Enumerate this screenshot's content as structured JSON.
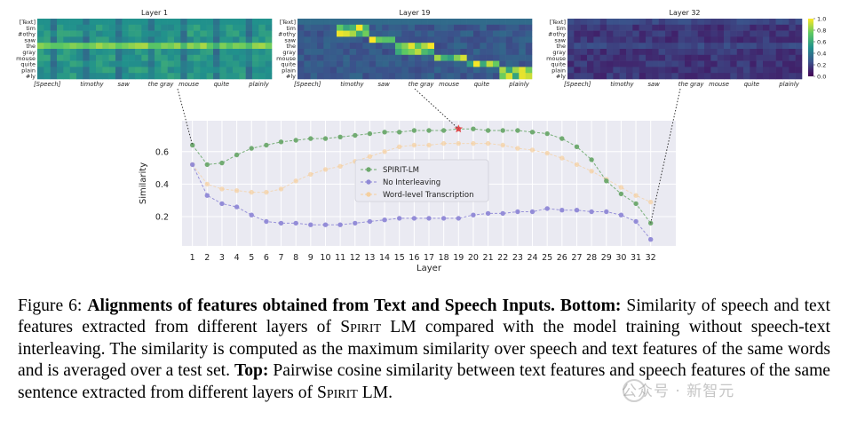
{
  "chart_data": [
    {
      "type": "heatmap",
      "title": "Layer 1",
      "row_labels": [
        "[Text]",
        "tim",
        "#othy",
        "saw",
        "the",
        "gray",
        "mouse",
        "quite",
        "plain",
        "#ly"
      ],
      "col_labels": [
        "[Speech]",
        "timothy",
        "saw",
        "the gray",
        "mouse",
        "quite",
        "plainly"
      ]
    },
    {
      "type": "heatmap",
      "title": "Layer 19",
      "row_labels": [
        "[Text]",
        "tim",
        "#othy",
        "saw",
        "the",
        "gray",
        "mouse",
        "quite",
        "plain",
        "#ly"
      ],
      "col_labels": [
        "[Speech]",
        "timothy",
        "saw",
        "the gray",
        "mouse",
        "quite",
        "plainly"
      ]
    },
    {
      "type": "heatmap",
      "title": "Layer 32",
      "row_labels": [
        "[Text]",
        "tim",
        "#othy",
        "saw",
        "the",
        "gray",
        "mouse",
        "quite",
        "plain",
        "#ly"
      ],
      "col_labels": [
        "[Speech]",
        "timothy",
        "saw",
        "the gray",
        "mouse",
        "quite",
        "plainly"
      ],
      "colorbar": {
        "ticks": [
          "1.0",
          "0.8",
          "0.6",
          "0.4",
          "0.2",
          "0.0"
        ],
        "range": [
          0,
          1
        ]
      }
    },
    {
      "type": "line",
      "xlabel": "Layer",
      "ylabel": "Similarity",
      "x": [
        1,
        2,
        3,
        4,
        5,
        6,
        7,
        8,
        9,
        10,
        11,
        12,
        13,
        14,
        15,
        16,
        17,
        18,
        19,
        20,
        21,
        22,
        23,
        24,
        25,
        26,
        27,
        28,
        29,
        30,
        31,
        32
      ],
      "xlim": [
        0.3,
        33.7
      ],
      "ylim": [
        0.02,
        0.79
      ],
      "yticks": [
        "0.2",
        "0.4",
        "0.6"
      ],
      "grid": true,
      "legend_position": "center",
      "highlight": {
        "x": 19,
        "y": 0.74,
        "marker": "star"
      },
      "series": [
        {
          "name": "SPIRIT-LM",
          "color": "#6ca86c",
          "values": [
            0.64,
            0.52,
            0.53,
            0.58,
            0.62,
            0.64,
            0.66,
            0.67,
            0.68,
            0.68,
            0.69,
            0.7,
            0.71,
            0.72,
            0.72,
            0.73,
            0.73,
            0.73,
            0.74,
            0.74,
            0.73,
            0.73,
            0.73,
            0.72,
            0.71,
            0.68,
            0.63,
            0.55,
            0.42,
            0.34,
            0.28,
            0.16
          ]
        },
        {
          "name": "No Interleaving",
          "color": "#8f88d6",
          "values": [
            0.52,
            0.33,
            0.28,
            0.26,
            0.21,
            0.17,
            0.16,
            0.16,
            0.15,
            0.15,
            0.15,
            0.16,
            0.17,
            0.18,
            0.19,
            0.19,
            0.19,
            0.19,
            0.19,
            0.21,
            0.22,
            0.22,
            0.23,
            0.23,
            0.25,
            0.24,
            0.24,
            0.23,
            0.23,
            0.21,
            0.17,
            0.06
          ]
        },
        {
          "name": "Word-level Transcription",
          "color": "#f5cf9e",
          "values": [
            0.52,
            0.4,
            0.37,
            0.36,
            0.35,
            0.35,
            0.37,
            0.42,
            0.46,
            0.49,
            0.51,
            0.54,
            0.57,
            0.6,
            0.63,
            0.64,
            0.64,
            0.65,
            0.65,
            0.65,
            0.65,
            0.64,
            0.62,
            0.61,
            0.59,
            0.56,
            0.52,
            0.48,
            0.43,
            0.38,
            0.33,
            0.29
          ]
        }
      ]
    }
  ],
  "caption": {
    "fig_label": "Figure 6:",
    "bold1": "Alignments of features obtained from Text and Speech Inputs.",
    "bold2": "Bottom:",
    "text1": "Similarity of speech and text features extracted from different layers of",
    "spirit1": "Spirit",
    "text2": "LM compared with the model training without speech-text interleaving. The similarity is computed as the maximum similarity over speech and text features of the same words and is averaged over a test set.",
    "bold3": "Top:",
    "text3": "Pairwise cosine similarity between text features and speech features of the same sentence extracted from different layers of",
    "spirit2": "Spirit",
    "text4": "LM."
  },
  "watermark": "公众号 · 新智元"
}
